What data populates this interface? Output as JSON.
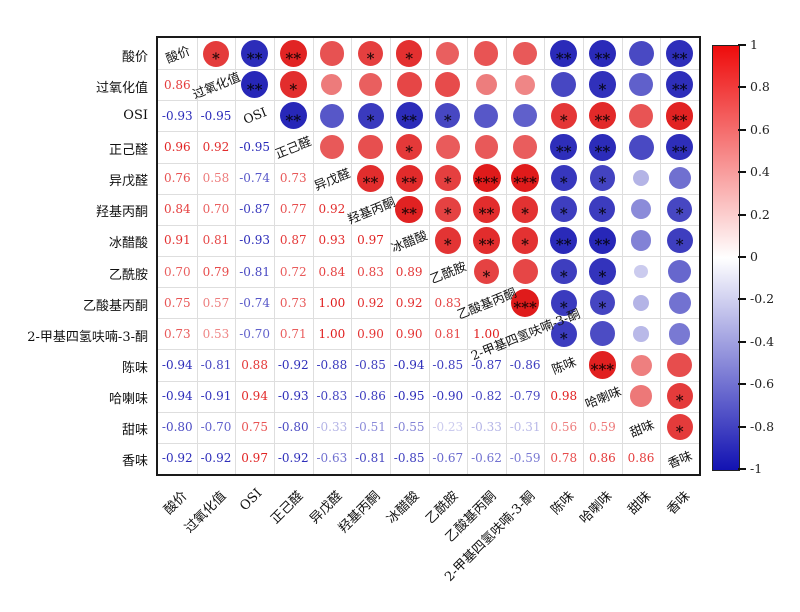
{
  "figure": {
    "background": "#ffffff",
    "title": ""
  },
  "chart_data": {
    "type": "heatmap",
    "subtype": "correlation-matrix",
    "layout": "lower-triangle-numbers, diagonal-names, upper-triangle-circles-with-stars",
    "legend_position": "right-colorbar",
    "grid": true,
    "variables": [
      "酸价",
      "过氧化值",
      "OSI",
      "正己醛",
      "异戊醛",
      "羟基丙酮",
      "冰醋酸",
      "乙酰胺",
      "乙酸基丙酮",
      "2-甲基四氢呋喃-3-酮",
      "陈味",
      "哈喇味",
      "甜味",
      "香味"
    ],
    "corr_lower_triangle": [
      [],
      [
        0.86
      ],
      [
        -0.93,
        -0.95
      ],
      [
        0.96,
        0.92,
        -0.95
      ],
      [
        0.76,
        0.58,
        -0.74,
        0.73
      ],
      [
        0.84,
        0.7,
        -0.87,
        0.77,
        0.92
      ],
      [
        0.91,
        0.81,
        -0.93,
        0.87,
        0.93,
        0.97
      ],
      [
        0.7,
        0.79,
        -0.81,
        0.72,
        0.84,
        0.83,
        0.89
      ],
      [
        0.75,
        0.57,
        -0.74,
        0.73,
        1.0,
        0.92,
        0.92,
        0.83
      ],
      [
        0.73,
        0.53,
        -0.7,
        0.71,
        1.0,
        0.9,
        0.9,
        0.81,
        1.0
      ],
      [
        -0.94,
        -0.81,
        0.88,
        -0.92,
        -0.88,
        -0.85,
        -0.94,
        -0.85,
        -0.87,
        -0.86
      ],
      [
        -0.94,
        -0.91,
        0.94,
        -0.93,
        -0.83,
        -0.86,
        -0.95,
        -0.9,
        -0.82,
        -0.79,
        0.98
      ],
      [
        -0.8,
        -0.7,
        0.75,
        -0.8,
        -0.33,
        -0.51,
        -0.55,
        -0.23,
        -0.33,
        -0.31,
        0.56,
        0.59
      ],
      [
        -0.92,
        -0.92,
        0.97,
        -0.92,
        -0.63,
        -0.81,
        -0.85,
        -0.67,
        -0.62,
        -0.59,
        0.78,
        0.86,
        0.86
      ]
    ],
    "stars_upper_triangle": [
      {
        "row": 0,
        "stars": [
          "*",
          "**",
          "**",
          "",
          "*",
          "*",
          "",
          "",
          "",
          "**",
          "**",
          "",
          "**"
        ]
      },
      {
        "row": 1,
        "stars": [
          "**",
          "*",
          "",
          "",
          "",
          "",
          "",
          "",
          "",
          "*",
          "",
          "**"
        ]
      },
      {
        "row": 2,
        "stars": [
          "**",
          "",
          "*",
          "**",
          "*",
          "",
          "",
          "*",
          "**",
          "",
          "**"
        ]
      },
      {
        "row": 3,
        "stars": [
          "",
          "",
          "*",
          "",
          "",
          "",
          "**",
          "**",
          "",
          "**"
        ]
      },
      {
        "row": 4,
        "stars": [
          "**",
          "**",
          "*",
          "***",
          "***",
          "*",
          "*",
          "",
          ""
        ]
      },
      {
        "row": 5,
        "stars": [
          "**",
          "*",
          "**",
          "*",
          "*",
          "*",
          "",
          "*"
        ]
      },
      {
        "row": 6,
        "stars": [
          "*",
          "**",
          "*",
          "**",
          "**",
          "",
          "*"
        ]
      },
      {
        "row": 7,
        "stars": [
          "*",
          "",
          "*",
          "*",
          "",
          ""
        ]
      },
      {
        "row": 8,
        "stars": [
          "***",
          "*",
          "*",
          "",
          ""
        ]
      },
      {
        "row": 9,
        "stars": [
          "*",
          "",
          "",
          ""
        ]
      },
      {
        "row": 10,
        "stars": [
          "***",
          "",
          ""
        ]
      },
      {
        "row": 11,
        "stars": [
          "",
          "*"
        ]
      },
      {
        "row": 12,
        "stars": [
          "*"
        ]
      },
      {
        "row": 13,
        "stars": []
      }
    ],
    "colorbar": {
      "tick_values": [
        1,
        0.8,
        0.6,
        0.4,
        0.2,
        0,
        -0.2,
        -0.4,
        -0.6,
        -0.8,
        -1
      ],
      "tick_labels": [
        "1",
        "0.8",
        "0.6",
        "0.4",
        "0.2",
        "0",
        "-0.2",
        "-0.4",
        "-0.6",
        "-0.8",
        "-1"
      ],
      "range": [
        -1,
        1
      ]
    },
    "colors": {
      "positive": "#e01b1b",
      "negative": "#1c1cb4",
      "midpoint": "#ffffff",
      "colorbar_top": "#ee0c0c",
      "colorbar_bottom": "#1212b2",
      "grid": "#dedede",
      "border": "#1a1a1a",
      "star": "#000000"
    }
  }
}
